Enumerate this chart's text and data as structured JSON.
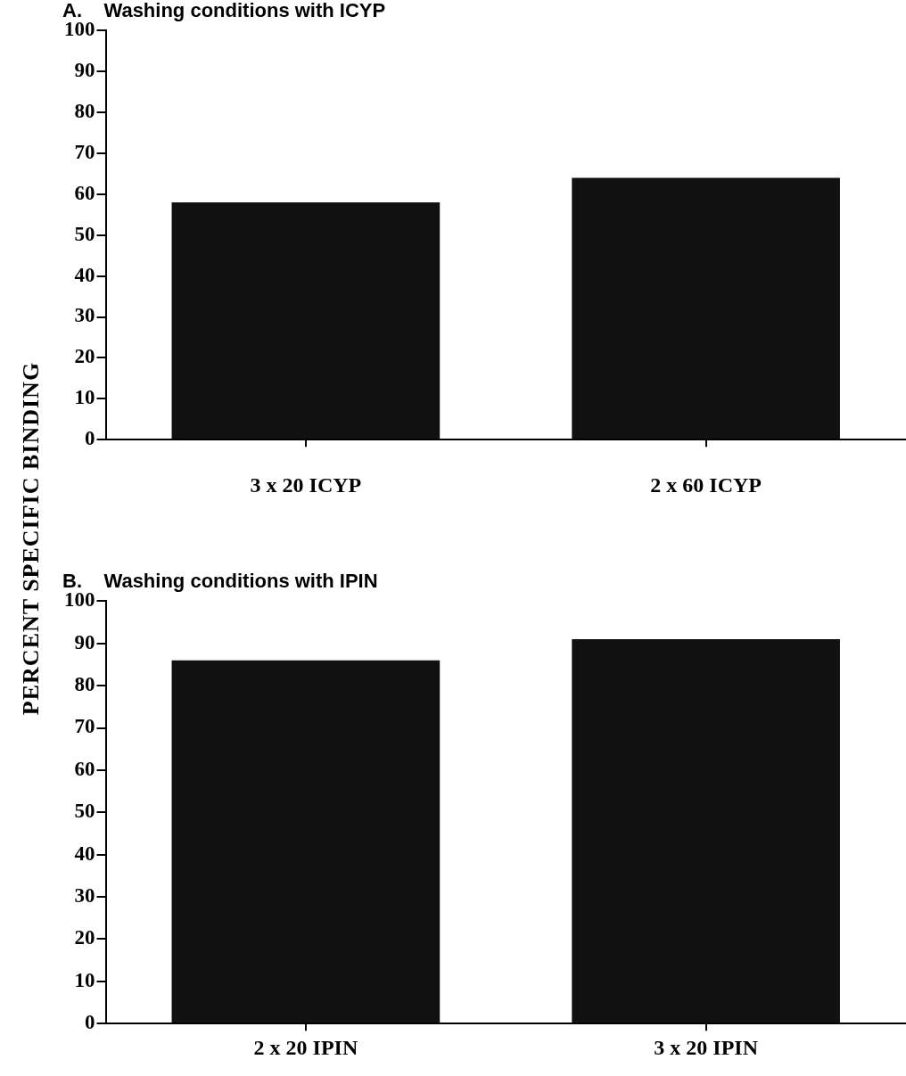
{
  "chart_data": [
    {
      "type": "bar",
      "title": "A.    Washing conditions with ICYP",
      "ylabel": "PERCENT  SPECIFIC  BINDING",
      "categories": [
        "3 x 20 ICYP",
        "2 x 60 ICYP"
      ],
      "values": [
        58,
        64
      ],
      "color": "#111111",
      "ylim": [
        0,
        100
      ],
      "yticks": [
        0,
        10,
        20,
        30,
        40,
        50,
        60,
        70,
        80,
        90,
        100
      ],
      "grid": false,
      "legend": false
    },
    {
      "type": "bar",
      "title": "B.    Washing conditions with IPIN",
      "categories": [
        "2 x 20 IPIN",
        "3 x 20 IPIN"
      ],
      "values": [
        86,
        91
      ],
      "color": "#111111",
      "ylim": [
        0,
        100
      ],
      "yticks": [
        0,
        10,
        20,
        30,
        40,
        50,
        60,
        70,
        80,
        90,
        100
      ],
      "grid": false,
      "legend": false
    }
  ]
}
